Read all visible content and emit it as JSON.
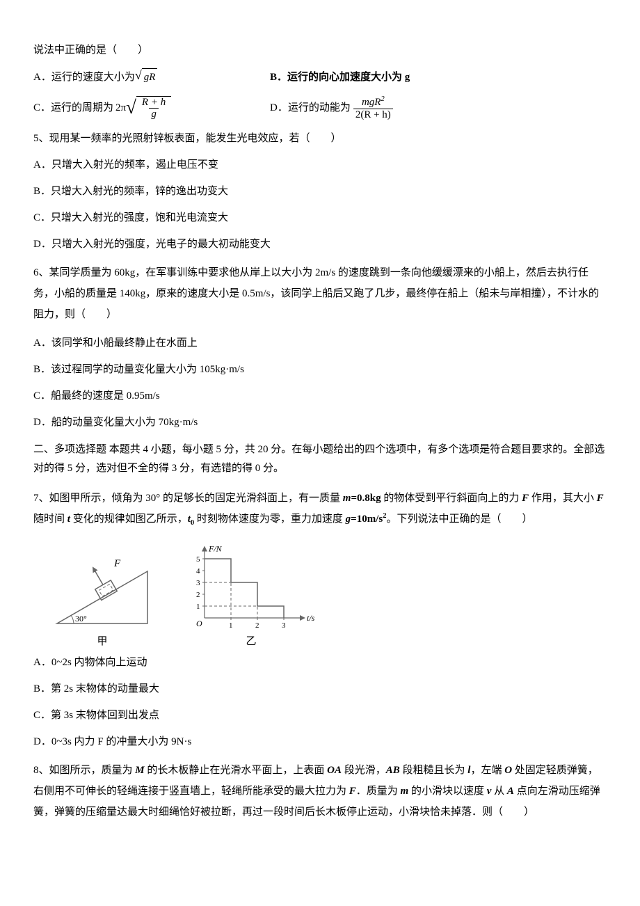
{
  "q4_tail": {
    "stem_tail": "说法中正确的是（　　）",
    "A_prefix": "A．运行的速度大小为",
    "A_radicand": "gR",
    "B": "B．运行的向心加速度大小为 g",
    "C_prefix": "C．运行的周期为",
    "C_coeff": "2π",
    "C_frac_num": "R + h",
    "C_frac_den": "g",
    "D_prefix": "D．运行的动能为",
    "D_frac_num": "mgR",
    "D_frac_num_sup": "2",
    "D_frac_den": "2(R + h)"
  },
  "q5": {
    "stem": "5、现用某一频率的光照射锌板表面，能发生光电效应，若（　　）",
    "A": "A．只增大入射光的频率，遏止电压不变",
    "B": "B．只增大入射光的频率，锌的逸出功变大",
    "C": "C．只增大入射光的强度，饱和光电流变大",
    "D": "D．只增大入射光的强度，光电子的最大初动能变大"
  },
  "q6": {
    "stem": "6、某同学质量为 60kg，在军事训练中要求他从岸上以大小为 2m/s 的速度跳到一条向他缓缓漂来的小船上，然后去执行任务，小船的质量是 140kg，原来的速度大小是 0.5m/s，该同学上船后又跑了几步，最终停在船上（船未与岸相撞），不计水的阻力，则（　　）",
    "A": "A．该同学和小船最终静止在水面上",
    "B": "B．该过程同学的动量变化量大小为 105kg·m/s",
    "C": "C．船最终的速度是 0.95m/s",
    "D": "D．船的动量变化量大小为 70kg·m/s"
  },
  "section2": {
    "title": "二、多项选择题  本题共 4 小题，每小题 5 分，共 20 分。在每小题给出的四个选项中，有多个选项是符合题目要求的。全部选对的得 5 分，选对但不全的得 3 分，有选错的得 0 分。"
  },
  "q7": {
    "stem_p1": "7、如图甲所示，倾角为 30° 的足够长的固定光滑斜面上，有一质量 ",
    "stem_m": "m",
    "stem_m_val": "=0.8kg",
    "stem_p2": " 的物体受到平行斜面向上的力 ",
    "stem_F": "F",
    "stem_p3": " 作用，其大小 ",
    "stem_p4": " 随时间 ",
    "stem_t": "t",
    "stem_p5": " 变化的规律如图乙所示，",
    "stem_t0": "t",
    "stem_t0_sub": "0",
    "stem_p6": " 时刻物体速度为零，重力加速度 ",
    "stem_g": "g",
    "stem_g_val": "=10m/s",
    "stem_g_sup": "2",
    "stem_p7": "。下列说法中正确的是（　　）",
    "A": "A．0~2s 内物体向上运动",
    "B": "B．第 2s 末物体的动量最大",
    "C": "C．第 3s 末物体回到出发点",
    "D": "D．0~3s 内力 F 的冲量大小为 9N·s",
    "fig1_label": "甲",
    "fig2_label": "乙",
    "incline": {
      "angle_label": "30°",
      "force_label": "F",
      "stroke": "#666",
      "fill_dash": "4 3"
    },
    "graph": {
      "ylabel": "F/N",
      "xlabel": "t/s",
      "origin_label": "O",
      "stroke": "#666",
      "dash": "4 3",
      "xticks": [
        "1",
        "2",
        "3"
      ],
      "yticks": [
        "1",
        "2",
        "3",
        "4",
        "5"
      ],
      "step_points": [
        [
          0,
          5
        ],
        [
          1,
          5
        ],
        [
          1,
          3
        ],
        [
          2,
          3
        ],
        [
          2,
          1
        ],
        [
          3,
          1
        ]
      ],
      "xmax": 3.5,
      "ymax": 5.5,
      "font_size": 12
    }
  },
  "q8": {
    "stem_p1": "8、如图所示，质量为 ",
    "M": "M",
    "stem_p2": " 的长木板静止在光滑水平面上，上表面 ",
    "OA": "OA",
    "stem_p3": " 段光滑，",
    "AB": "AB",
    "stem_p4": " 段粗糙且长为 ",
    "l": "l",
    "stem_p5": "，左端 ",
    "O": "O",
    "stem_p6": " 处固定轻质弹簧，右侧用不可伸长的轻绳连接于竖直墙上，轻绳所能承受的最大拉力为 ",
    "F": "F",
    "stem_p7": "．质量为 ",
    "m": "m",
    "stem_p8": " 的小滑块以速度 ",
    "v": "v",
    "stem_p9": " 从 ",
    "A": "A",
    "stem_p10": " 点向左滑动压缩弹簧，弹簧的压缩量达最大时细绳恰好被拉断，再过一段时间后长木板停止运动，小滑块恰未掉落．则（　　）"
  }
}
